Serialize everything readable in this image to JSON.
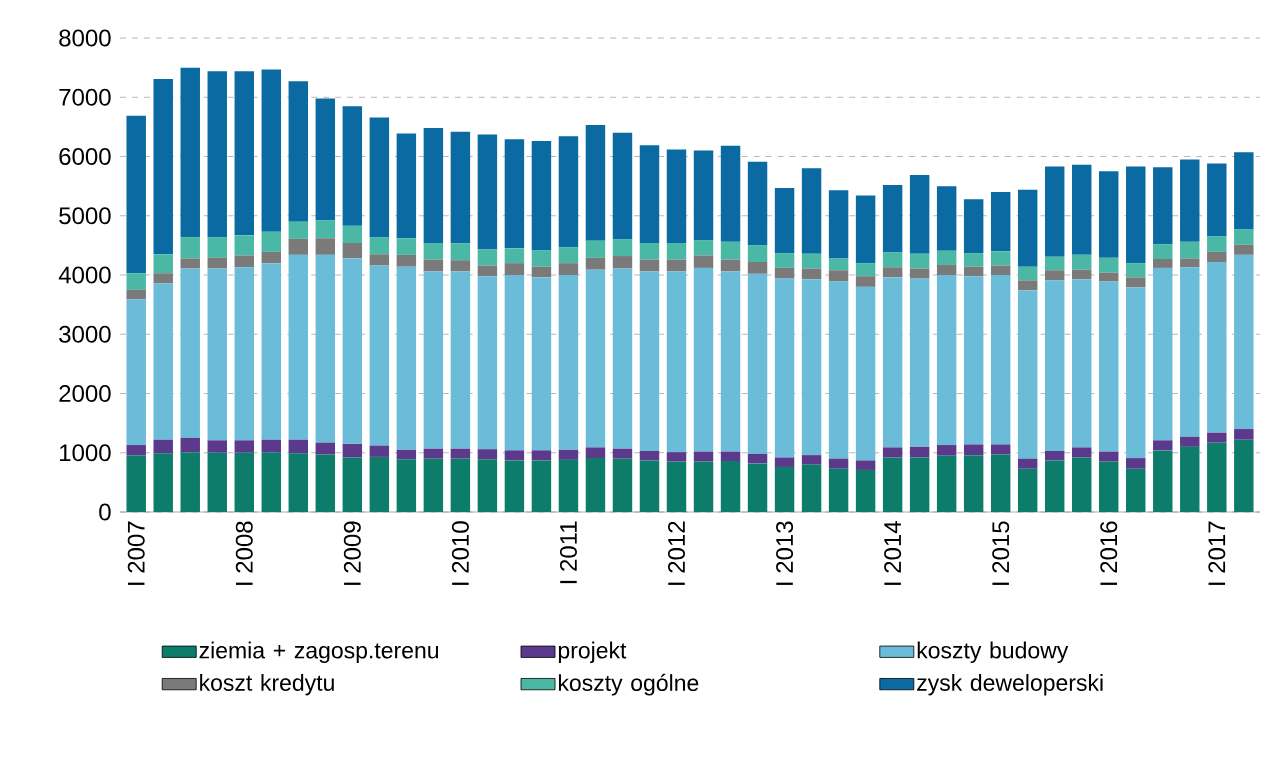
{
  "chart_data": {
    "type": "bar",
    "stacked": true,
    "categories": [
      "I 2007",
      null,
      null,
      null,
      "I 2008",
      null,
      null,
      null,
      "I 2009",
      null,
      null,
      null,
      "I 2010",
      null,
      null,
      null,
      "I 2011",
      null,
      null,
      null,
      "I 2012",
      null,
      null,
      null,
      "I 2013",
      null,
      null,
      null,
      "I 2014",
      null,
      null,
      null,
      "I 2015",
      null,
      null,
      null,
      "I 2016",
      null,
      null,
      null,
      "I 2017",
      null
    ],
    "series": [
      {
        "name": "ziemia + zagosp.terenu",
        "color": "#0e7c6b",
        "values": [
          960,
          990,
          1010,
          1000,
          1000,
          1010,
          990,
          970,
          920,
          930,
          890,
          900,
          900,
          890,
          870,
          870,
          880,
          910,
          900,
          870,
          850,
          850,
          860,
          820,
          760,
          800,
          730,
          710,
          920,
          920,
          950,
          960,
          970,
          730,
          870,
          920,
          850,
          730,
          1040,
          1100,
          1170,
          1220
        ]
      },
      {
        "name": "projekt",
        "color": "#5b3a8c",
        "values": [
          170,
          230,
          240,
          210,
          210,
          210,
          230,
          200,
          230,
          190,
          160,
          170,
          170,
          170,
          170,
          170,
          170,
          180,
          170,
          160,
          160,
          170,
          160,
          160,
          160,
          160,
          170,
          160,
          170,
          180,
          180,
          180,
          170,
          170,
          160,
          170,
          170,
          180,
          170,
          170,
          170,
          180
        ]
      },
      {
        "name": "koszty budowy",
        "color": "#6bbcd9",
        "values": [
          2460,
          2640,
          2860,
          2900,
          2920,
          2980,
          3120,
          3170,
          3130,
          3040,
          3090,
          2990,
          2990,
          2920,
          2960,
          2920,
          2950,
          3000,
          3040,
          3030,
          3050,
          3100,
          3040,
          3040,
          3020,
          2970,
          2990,
          2930,
          2870,
          2840,
          2870,
          2840,
          2860,
          2840,
          2880,
          2840,
          2870,
          2880,
          2910,
          2860,
          2880,
          2940
        ]
      },
      {
        "name": "koszt kredytu",
        "color": "#7a7a7a",
        "values": [
          160,
          170,
          170,
          180,
          200,
          190,
          270,
          280,
          260,
          190,
          200,
          200,
          190,
          180,
          200,
          180,
          200,
          200,
          210,
          200,
          200,
          210,
          200,
          200,
          180,
          180,
          190,
          180,
          170,
          170,
          170,
          160,
          160,
          170,
          170,
          160,
          150,
          170,
          150,
          150,
          170,
          170
        ]
      },
      {
        "name": "koszty ogólne",
        "color": "#4bb8a6",
        "values": [
          280,
          320,
          360,
          350,
          340,
          340,
          290,
          300,
          290,
          290,
          280,
          280,
          280,
          270,
          250,
          280,
          270,
          290,
          280,
          280,
          280,
          260,
          300,
          280,
          250,
          250,
          200,
          220,
          250,
          250,
          240,
          230,
          240,
          230,
          230,
          250,
          250,
          240,
          250,
          280,
          260,
          260
        ]
      },
      {
        "name": "zysk deweloperski",
        "color": "#0a6aa1",
        "values": [
          2660,
          2960,
          2860,
          2800,
          2770,
          2740,
          2370,
          2060,
          2020,
          2020,
          1770,
          1940,
          1890,
          1940,
          1840,
          1840,
          1870,
          1950,
          1800,
          1650,
          1580,
          1510,
          1620,
          1410,
          1100,
          1440,
          1150,
          1140,
          1140,
          1330,
          1090,
          910,
          1000,
          1300,
          1520,
          1520,
          1460,
          1630,
          1300,
          1390,
          1230,
          1300
        ]
      }
    ],
    "ylim": [
      0,
      8000
    ],
    "yticks": [
      0,
      1000,
      2000,
      3000,
      4000,
      5000,
      6000,
      7000,
      8000
    ],
    "grid": "y",
    "legend": "bottom"
  }
}
